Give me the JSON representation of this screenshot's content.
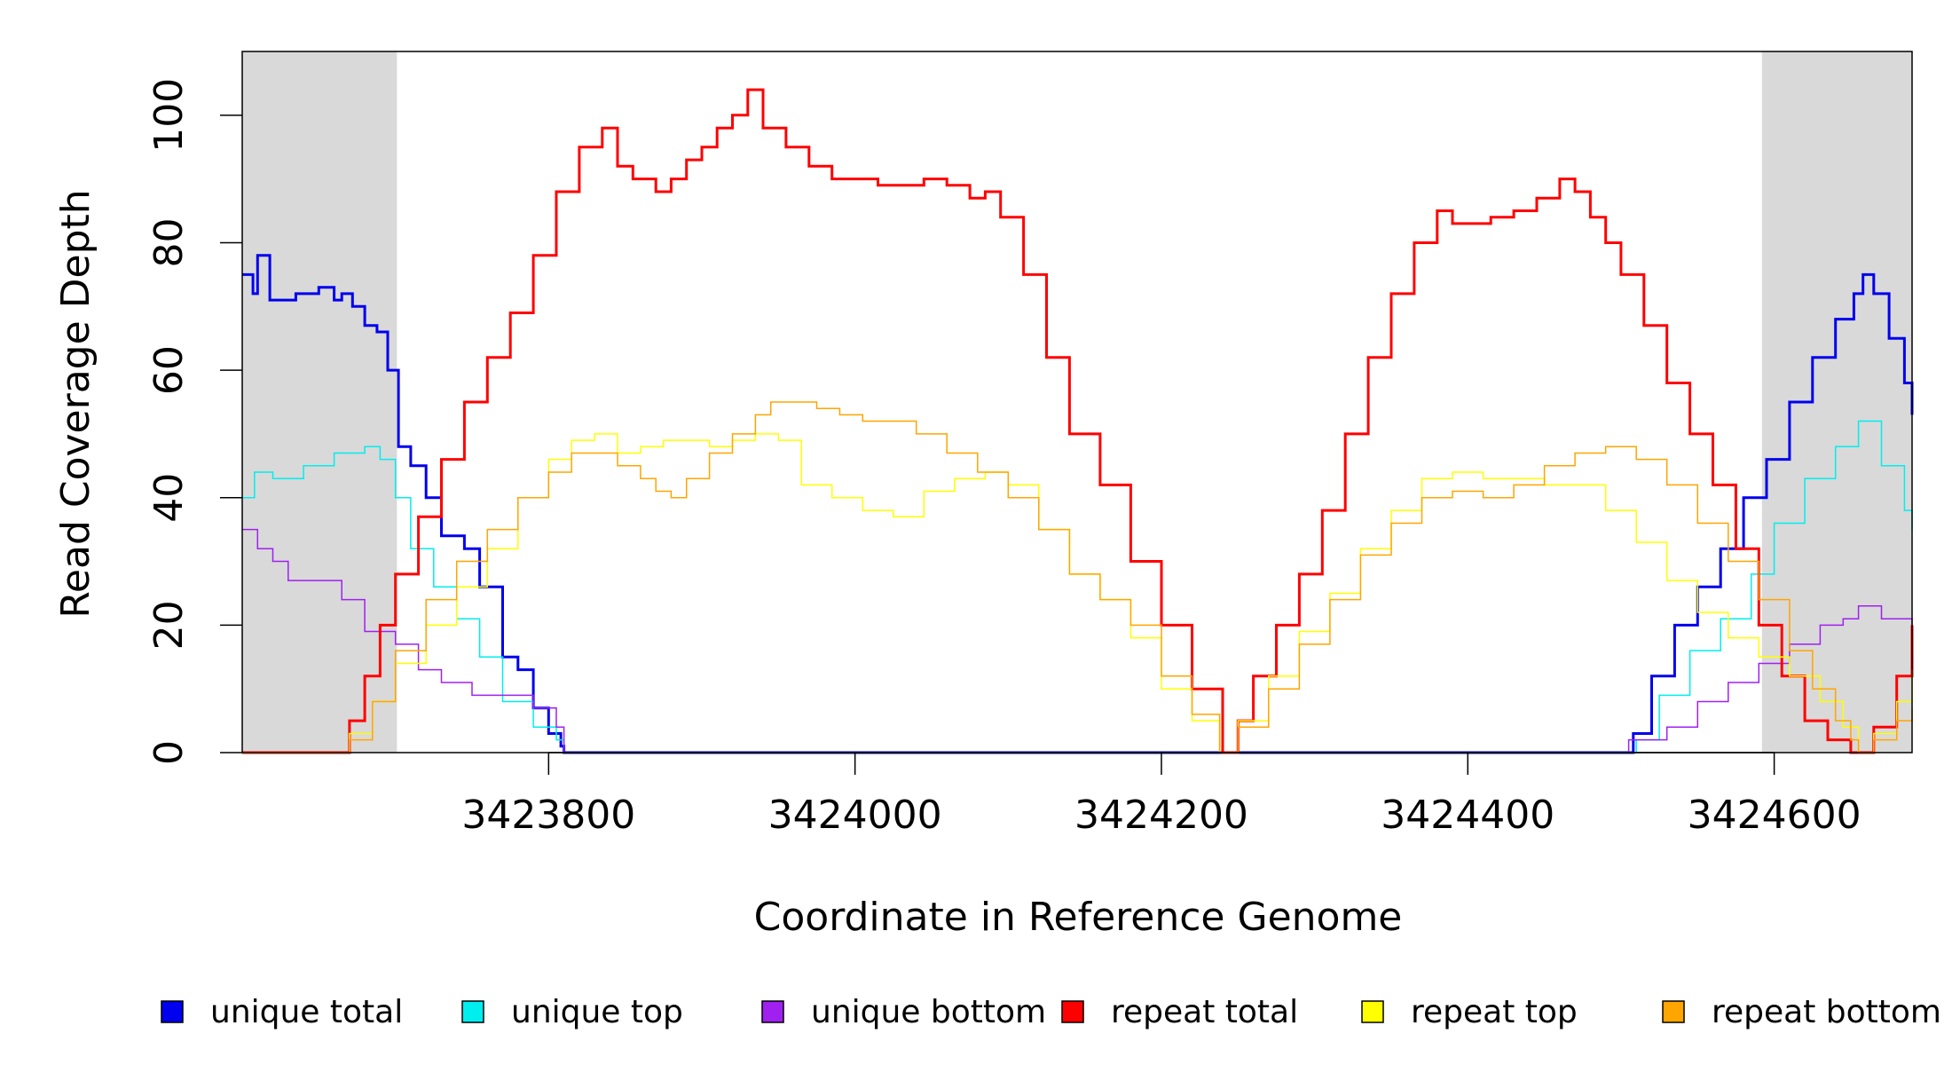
{
  "chart_data": {
    "type": "line",
    "title": "",
    "xlabel": "Coordinate in Reference Genome",
    "ylabel": "Read Coverage Depth",
    "xlim": [
      3423600,
      3424690
    ],
    "ylim": [
      0,
      110
    ],
    "x_ticks": [
      3423800,
      3424000,
      3424200,
      3424400,
      3424600
    ],
    "x_tick_labels": [
      "3423800",
      "3424000",
      "3424200",
      "3424400",
      "3424600"
    ],
    "y_ticks": [
      0,
      20,
      40,
      60,
      80,
      100
    ],
    "y_tick_labels": [
      "0",
      "20",
      "40",
      "60",
      "80",
      "100"
    ],
    "grid": false,
    "legend_position": "bottom",
    "shaded_regions": [
      {
        "x": [
          3423600,
          3423701
        ],
        "color": "#d9d9d9"
      },
      {
        "x": [
          3424592,
          3424690
        ],
        "color": "#d9d9d9"
      }
    ],
    "series": [
      {
        "name": "unique total",
        "color": "#0000ee",
        "width": 3,
        "x": [
          3423600,
          3423607,
          3423610,
          3423618,
          3423625,
          3423635,
          3423650,
          3423660,
          3423665,
          3423672,
          3423680,
          3423688,
          3423695,
          3423702,
          3423710,
          3423720,
          3423730,
          3423745,
          3423755,
          3423770,
          3423780,
          3423790,
          3423800,
          3423808,
          3423810,
          3424500,
          3424508,
          3424520,
          3424535,
          3424550,
          3424565,
          3424580,
          3424595,
          3424610,
          3424625,
          3424640,
          3424652,
          3424658,
          3424665,
          3424675,
          3424685,
          3424690
        ],
        "y": [
          75,
          72,
          78,
          71,
          71,
          72,
          73,
          71,
          72,
          70,
          67,
          66,
          60,
          48,
          45,
          40,
          34,
          32,
          26,
          15,
          13,
          7,
          3,
          1,
          0,
          0,
          3,
          12,
          20,
          26,
          32,
          40,
          46,
          55,
          62,
          68,
          72,
          75,
          72,
          65,
          58,
          53
        ]
      },
      {
        "name": "unique top",
        "color": "#00eeee",
        "width": 1.5,
        "x": [
          3423600,
          3423608,
          3423620,
          3423640,
          3423660,
          3423680,
          3423690,
          3423700,
          3423710,
          3423725,
          3423740,
          3423755,
          3423770,
          3423790,
          3423805,
          3423810,
          3424500,
          3424510,
          3424525,
          3424545,
          3424565,
          3424585,
          3424600,
          3424620,
          3424640,
          3424655,
          3424670,
          3424685,
          3424690
        ],
        "y": [
          40,
          44,
          43,
          45,
          47,
          48,
          46,
          40,
          32,
          26,
          21,
          15,
          8,
          4,
          2,
          0,
          0,
          2,
          9,
          16,
          21,
          28,
          36,
          43,
          48,
          52,
          45,
          38,
          35
        ]
      },
      {
        "name": "unique bottom",
        "color": "#a020f0",
        "width": 1.5,
        "x": [
          3423600,
          3423610,
          3423620,
          3423630,
          3423650,
          3423665,
          3423680,
          3423700,
          3423715,
          3423730,
          3423750,
          3423770,
          3423790,
          3423805,
          3423810,
          3424500,
          3424505,
          3424530,
          3424550,
          3424570,
          3424590,
          3424610,
          3424630,
          3424645,
          3424655,
          3424670,
          3424690
        ],
        "y": [
          35,
          32,
          30,
          27,
          27,
          24,
          19,
          17,
          13,
          11,
          9,
          9,
          7,
          4,
          0,
          0,
          2,
          4,
          8,
          11,
          14,
          17,
          20,
          21,
          23,
          21,
          20
        ]
      },
      {
        "name": "repeat total",
        "color": "#ff0000",
        "width": 3,
        "x": [
          3423600,
          3423660,
          3423670,
          3423680,
          3423690,
          3423700,
          3423715,
          3423730,
          3423745,
          3423760,
          3423775,
          3423790,
          3423805,
          3423820,
          3423835,
          3423845,
          3423855,
          3423870,
          3423880,
          3423890,
          3423900,
          3423910,
          3423920,
          3423930,
          3423940,
          3423955,
          3423970,
          3423985,
          3424000,
          3424015,
          3424030,
          3424045,
          3424060,
          3424075,
          3424085,
          3424095,
          3424110,
          3424125,
          3424140,
          3424160,
          3424180,
          3424200,
          3424220,
          3424240,
          3424250,
          3424260,
          3424275,
          3424290,
          3424305,
          3424320,
          3424335,
          3424350,
          3424365,
          3424380,
          3424390,
          3424400,
          3424415,
          3424430,
          3424445,
          3424460,
          3424470,
          3424480,
          3424490,
          3424500,
          3424515,
          3424530,
          3424545,
          3424560,
          3424575,
          3424590,
          3424605,
          3424620,
          3424635,
          3424650,
          3424655,
          3424665,
          3424680,
          3424690
        ],
        "y": [
          0,
          0,
          5,
          12,
          20,
          28,
          37,
          46,
          55,
          62,
          69,
          78,
          88,
          95,
          98,
          92,
          90,
          88,
          90,
          93,
          95,
          98,
          100,
          104,
          98,
          95,
          92,
          90,
          90,
          89,
          89,
          90,
          89,
          87,
          88,
          84,
          75,
          62,
          50,
          42,
          30,
          20,
          10,
          0,
          5,
          12,
          20,
          28,
          38,
          50,
          62,
          72,
          80,
          85,
          83,
          83,
          84,
          85,
          87,
          90,
          88,
          84,
          80,
          75,
          67,
          58,
          50,
          42,
          32,
          20,
          12,
          5,
          2,
          0,
          0,
          4,
          12,
          20
        ]
      },
      {
        "name": "repeat top",
        "color": "#ffff00",
        "width": 1.5,
        "x": [
          3423600,
          3423660,
          3423670,
          3423685,
          3423700,
          3423720,
          3423740,
          3423760,
          3423780,
          3423800,
          3423815,
          3423830,
          3423845,
          3423860,
          3423875,
          3423890,
          3423905,
          3423920,
          3423935,
          3423950,
          3423965,
          3423985,
          3424005,
          3424025,
          3424045,
          3424065,
          3424085,
          3424100,
          3424120,
          3424140,
          3424160,
          3424180,
          3424200,
          3424220,
          3424238,
          3424250,
          3424270,
          3424290,
          3424310,
          3424330,
          3424350,
          3424370,
          3424390,
          3424410,
          3424430,
          3424450,
          3424470,
          3424490,
          3424510,
          3424530,
          3424550,
          3424570,
          3424590,
          3424610,
          3424630,
          3424645,
          3424655,
          3424665,
          3424680,
          3424690
        ],
        "y": [
          0,
          0,
          3,
          8,
          14,
          20,
          26,
          32,
          40,
          46,
          49,
          50,
          47,
          48,
          49,
          49,
          48,
          49,
          50,
          49,
          42,
          40,
          38,
          37,
          41,
          43,
          44,
          42,
          35,
          28,
          24,
          18,
          10,
          5,
          0,
          5,
          12,
          19,
          25,
          32,
          38,
          43,
          44,
          43,
          43,
          42,
          42,
          38,
          33,
          27,
          22,
          18,
          15,
          12,
          8,
          4,
          0,
          3,
          8,
          13
        ]
      },
      {
        "name": "repeat bottom",
        "color": "#ffa500",
        "width": 1.5,
        "x": [
          3423600,
          3423660,
          3423670,
          3423685,
          3423700,
          3423720,
          3423740,
          3423760,
          3423780,
          3423800,
          3423815,
          3423830,
          3423845,
          3423860,
          3423870,
          3423880,
          3423890,
          3423905,
          3423920,
          3423935,
          3423945,
          3423960,
          3423975,
          3423990,
          3424005,
          3424020,
          3424040,
          3424060,
          3424080,
          3424100,
          3424120,
          3424140,
          3424160,
          3424180,
          3424200,
          3424220,
          3424238,
          3424250,
          3424270,
          3424290,
          3424310,
          3424330,
          3424350,
          3424370,
          3424390,
          3424410,
          3424430,
          3424450,
          3424470,
          3424490,
          3424510,
          3424530,
          3424550,
          3424570,
          3424590,
          3424610,
          3424625,
          3424640,
          3424650,
          3424655,
          3424665,
          3424680,
          3424690
        ],
        "y": [
          0,
          0,
          2,
          8,
          16,
          24,
          30,
          35,
          40,
          44,
          47,
          47,
          45,
          43,
          41,
          40,
          43,
          47,
          50,
          53,
          55,
          55,
          54,
          53,
          52,
          52,
          50,
          47,
          44,
          40,
          35,
          28,
          24,
          20,
          12,
          6,
          0,
          4,
          10,
          17,
          24,
          31,
          36,
          40,
          41,
          40,
          42,
          45,
          47,
          48,
          46,
          42,
          36,
          30,
          24,
          16,
          10,
          5,
          2,
          0,
          2,
          5,
          7
        ]
      }
    ]
  }
}
